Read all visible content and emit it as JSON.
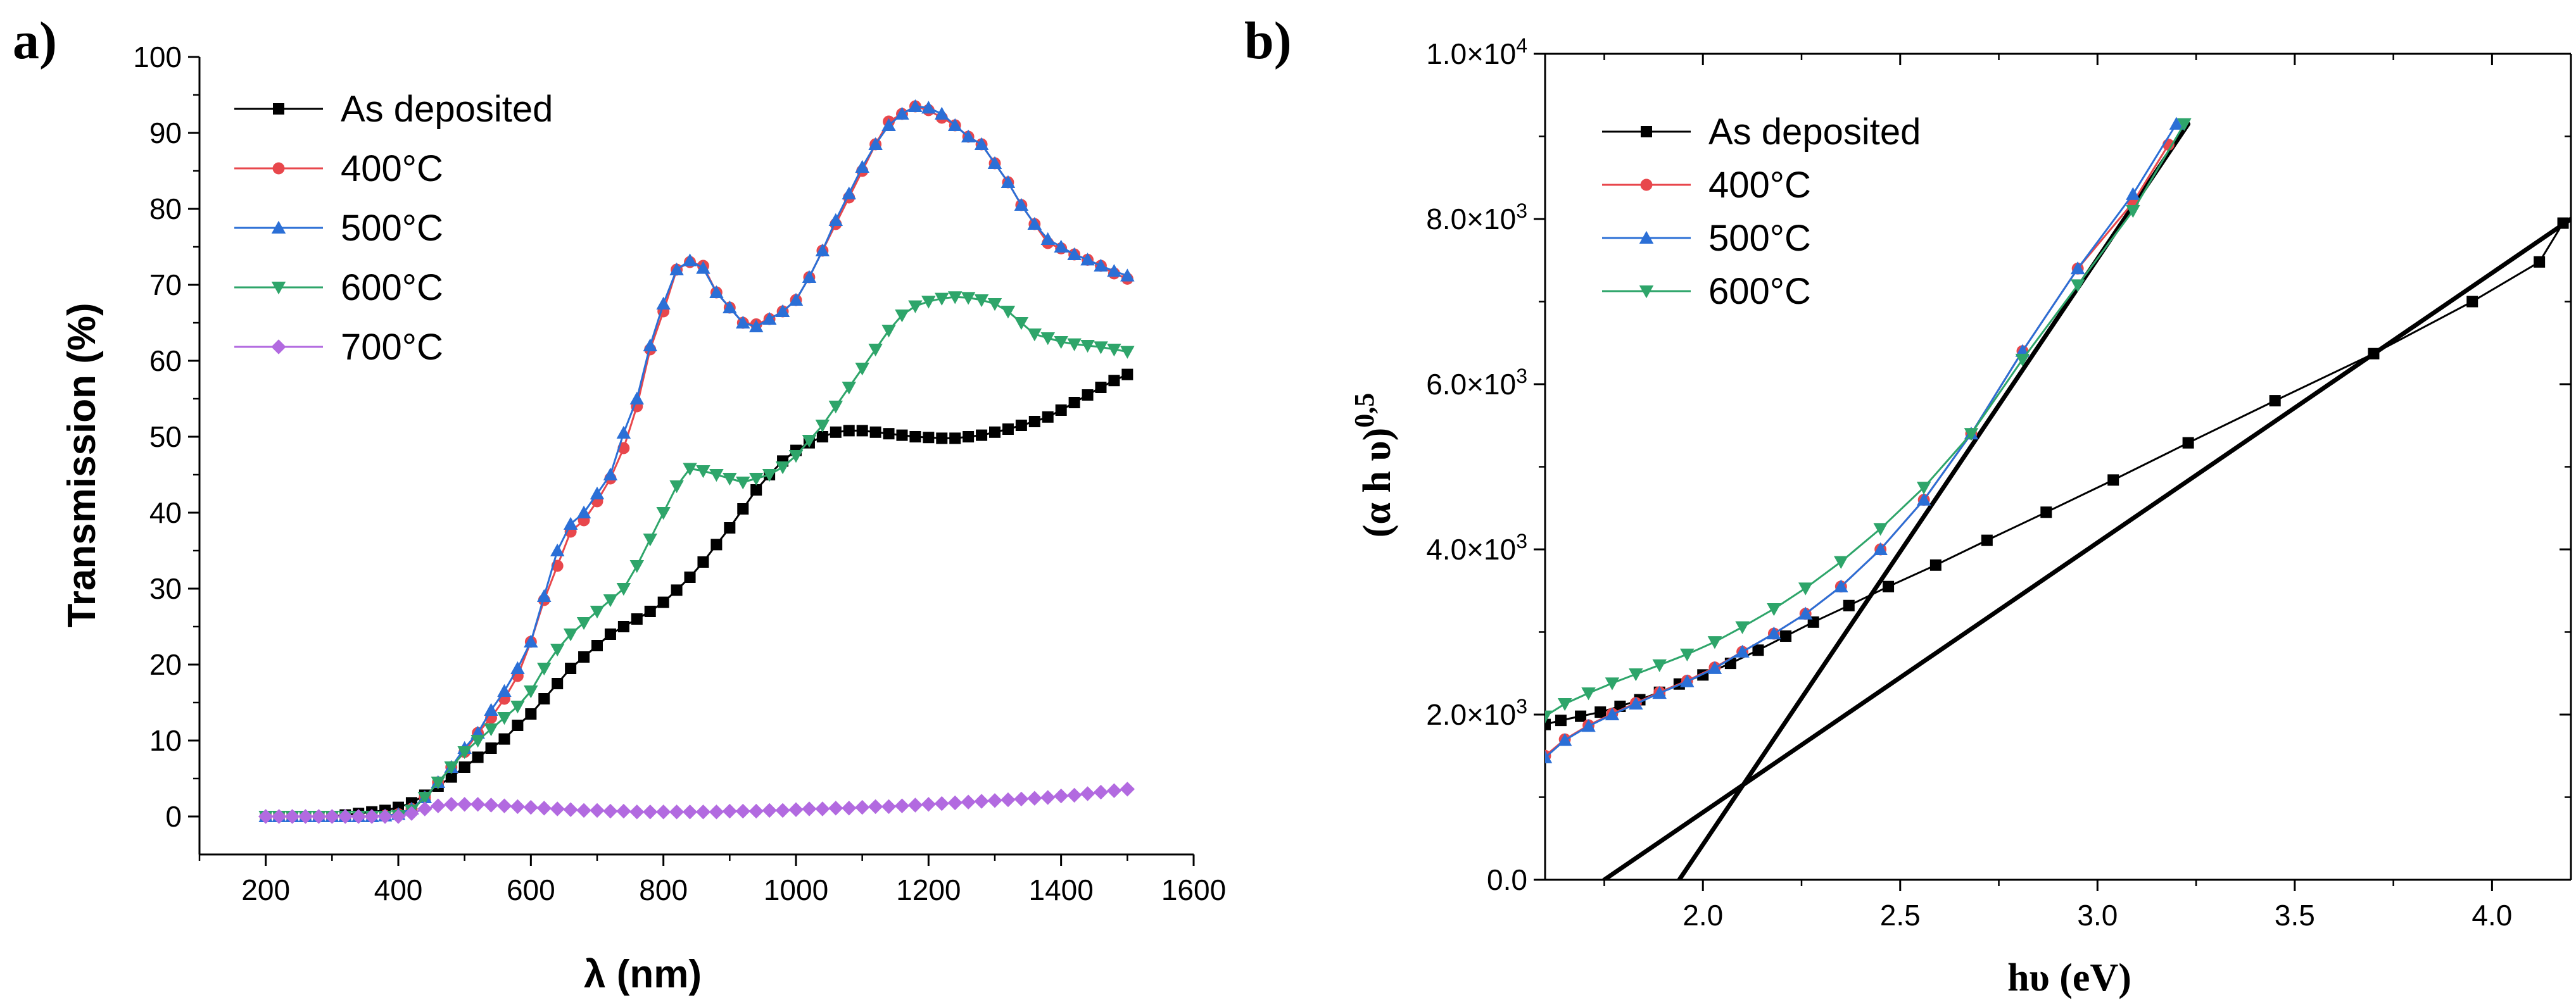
{
  "chart_data": [
    {
      "panel_label": "a)",
      "type": "line",
      "xlabel": "λ (nm)",
      "ylabel": "Transmission (%)",
      "xlim": [
        100,
        1600
      ],
      "ylim": [
        -5,
        100
      ],
      "xticks": [
        200,
        400,
        600,
        800,
        1000,
        1200,
        1400,
        1600
      ],
      "xtick_labels": [
        "200",
        "400",
        "600",
        "800",
        "1000",
        "1200",
        "1400",
        "1600"
      ],
      "yticks": [
        0,
        10,
        20,
        30,
        40,
        50,
        60,
        70,
        80,
        90,
        100
      ],
      "ytick_labels": [
        "0",
        "10",
        "20",
        "30",
        "40",
        "50",
        "60",
        "70",
        "80",
        "90",
        "100"
      ],
      "legend_position": "top-left",
      "series": [
        {
          "name": "As deposited",
          "color": "#000000",
          "marker": "square",
          "x": [
            200,
            220,
            240,
            260,
            280,
            300,
            320,
            340,
            360,
            380,
            400,
            420,
            440,
            460,
            480,
            500,
            520,
            540,
            560,
            580,
            600,
            620,
            640,
            660,
            680,
            700,
            720,
            740,
            760,
            780,
            800,
            820,
            840,
            860,
            880,
            900,
            920,
            940,
            960,
            980,
            1000,
            1020,
            1040,
            1060,
            1080,
            1100,
            1120,
            1140,
            1160,
            1180,
            1200,
            1220,
            1240,
            1260,
            1280,
            1300,
            1320,
            1340,
            1360,
            1380,
            1400,
            1420,
            1440,
            1460,
            1480,
            1500
          ],
          "y": [
            0,
            0,
            0,
            0,
            0,
            0,
            0.2,
            0.4,
            0.6,
            0.8,
            1.2,
            1.8,
            2.8,
            4,
            5.2,
            6.5,
            7.8,
            9,
            10.2,
            12,
            13.5,
            15.5,
            17.5,
            19.5,
            21,
            22.5,
            24,
            25,
            26,
            27,
            28.2,
            29.8,
            31.5,
            33.5,
            35.8,
            38,
            40.5,
            43,
            45,
            46.8,
            48.2,
            49.2,
            50,
            50.6,
            50.8,
            50.8,
            50.6,
            50.4,
            50.2,
            50,
            49.9,
            49.8,
            49.8,
            50,
            50.2,
            50.6,
            51,
            51.5,
            52,
            52.6,
            53.5,
            54.5,
            55.5,
            56.5,
            57.4,
            58.2
          ]
        },
        {
          "name": "400°C",
          "color": "#e8474c",
          "marker": "circle",
          "x": [
            200,
            220,
            240,
            260,
            280,
            300,
            320,
            340,
            360,
            380,
            400,
            420,
            440,
            460,
            480,
            500,
            520,
            540,
            560,
            580,
            600,
            620,
            640,
            660,
            680,
            700,
            720,
            740,
            760,
            780,
            800,
            820,
            840,
            860,
            880,
            900,
            920,
            940,
            960,
            980,
            1000,
            1020,
            1040,
            1060,
            1080,
            1100,
            1120,
            1140,
            1160,
            1180,
            1200,
            1220,
            1240,
            1260,
            1280,
            1300,
            1320,
            1340,
            1360,
            1380,
            1400,
            1420,
            1440,
            1460,
            1480,
            1500
          ],
          "y": [
            0,
            0,
            0,
            0,
            0,
            0,
            0,
            0,
            0,
            0.1,
            0.3,
            1,
            2.5,
            4.5,
            6.5,
            8.5,
            11,
            13,
            15.5,
            18.5,
            23,
            28.5,
            33,
            37.5,
            39,
            41.5,
            44.5,
            48.5,
            54,
            61.5,
            66.5,
            72,
            73,
            72.5,
            69,
            67,
            65,
            64.8,
            65.5,
            66.5,
            68,
            71,
            74.5,
            78,
            81.5,
            85,
            88.5,
            91.5,
            92.5,
            93.5,
            93,
            92,
            91,
            89.5,
            88.5,
            86,
            83.5,
            80.5,
            78,
            75.5,
            74.8,
            74,
            73.3,
            72.5,
            71.5,
            70.8
          ]
        },
        {
          "name": "500°C",
          "color": "#2b6fd6",
          "marker": "triangle-up",
          "x": [
            200,
            220,
            240,
            260,
            280,
            300,
            320,
            340,
            360,
            380,
            400,
            420,
            440,
            460,
            480,
            500,
            520,
            540,
            560,
            580,
            600,
            620,
            640,
            660,
            680,
            700,
            720,
            740,
            760,
            780,
            800,
            820,
            840,
            860,
            880,
            900,
            920,
            940,
            960,
            980,
            1000,
            1020,
            1040,
            1060,
            1080,
            1100,
            1120,
            1140,
            1160,
            1180,
            1200,
            1220,
            1240,
            1260,
            1280,
            1300,
            1320,
            1340,
            1360,
            1380,
            1400,
            1420,
            1440,
            1460,
            1480,
            1500
          ],
          "y": [
            0,
            0,
            0,
            0,
            0,
            0,
            0,
            0,
            0,
            0.1,
            0.3,
            1,
            2.5,
            4.5,
            6.5,
            9,
            11,
            14,
            16.5,
            19.5,
            23,
            29,
            35,
            38.5,
            40,
            42.5,
            45,
            50.5,
            55,
            62,
            67.5,
            72,
            73.2,
            72.2,
            69,
            67,
            65,
            64.5,
            65.5,
            66.5,
            68,
            71,
            74.5,
            78.5,
            82,
            85.5,
            88.5,
            91,
            92.5,
            93.5,
            93.3,
            92.5,
            91,
            89.5,
            88.5,
            86,
            83.5,
            80.5,
            78,
            76,
            75,
            74,
            73.3,
            72.5,
            71.8,
            71.2
          ]
        },
        {
          "name": "600°C",
          "color": "#2ea56a",
          "marker": "triangle-down",
          "x": [
            200,
            220,
            240,
            260,
            280,
            300,
            320,
            340,
            360,
            380,
            400,
            420,
            440,
            460,
            480,
            500,
            520,
            540,
            560,
            580,
            600,
            620,
            640,
            660,
            680,
            700,
            720,
            740,
            760,
            780,
            800,
            820,
            840,
            860,
            880,
            900,
            920,
            940,
            960,
            980,
            1000,
            1020,
            1040,
            1060,
            1080,
            1100,
            1120,
            1140,
            1160,
            1180,
            1200,
            1220,
            1240,
            1260,
            1280,
            1300,
            1320,
            1340,
            1360,
            1380,
            1400,
            1420,
            1440,
            1460,
            1480,
            1500
          ],
          "y": [
            0,
            0,
            0,
            0,
            0,
            0,
            0,
            0,
            0,
            0,
            0.1,
            0.8,
            2.5,
            4.5,
            6.5,
            8.5,
            10,
            11.5,
            13,
            14.5,
            16.5,
            19.5,
            22,
            24,
            25.5,
            27,
            28.5,
            30,
            33,
            36.5,
            40,
            43.5,
            45.8,
            45.5,
            45,
            44.5,
            44,
            44.5,
            45,
            46,
            47.5,
            49.5,
            51.5,
            54,
            56.5,
            59,
            61.5,
            64,
            66,
            67.2,
            67.8,
            68.2,
            68.4,
            68.3,
            68,
            67.5,
            66.5,
            65,
            63.5,
            63,
            62.5,
            62.2,
            62,
            61.8,
            61.5,
            61.2
          ]
        },
        {
          "name": "700°C",
          "color": "#b26ae0",
          "marker": "diamond",
          "x": [
            200,
            220,
            240,
            260,
            280,
            300,
            320,
            340,
            360,
            380,
            400,
            420,
            440,
            460,
            480,
            500,
            520,
            540,
            560,
            580,
            600,
            620,
            640,
            660,
            680,
            700,
            720,
            740,
            760,
            780,
            800,
            820,
            840,
            860,
            880,
            900,
            920,
            940,
            960,
            980,
            1000,
            1020,
            1040,
            1060,
            1080,
            1100,
            1120,
            1140,
            1160,
            1180,
            1200,
            1220,
            1240,
            1260,
            1280,
            1300,
            1320,
            1340,
            1360,
            1380,
            1400,
            1420,
            1440,
            1460,
            1480,
            1500
          ],
          "y": [
            0,
            0,
            0,
            0,
            0,
            0,
            0,
            0,
            0,
            0,
            0,
            0.4,
            1,
            1.4,
            1.6,
            1.6,
            1.6,
            1.5,
            1.4,
            1.3,
            1.2,
            1.1,
            1,
            0.9,
            0.8,
            0.8,
            0.7,
            0.7,
            0.6,
            0.6,
            0.6,
            0.6,
            0.6,
            0.6,
            0.6,
            0.7,
            0.7,
            0.7,
            0.8,
            0.8,
            0.9,
            1,
            1,
            1.1,
            1.1,
            1.2,
            1.3,
            1.3,
            1.4,
            1.5,
            1.6,
            1.7,
            1.8,
            1.9,
            2,
            2.1,
            2.2,
            2.3,
            2.4,
            2.5,
            2.7,
            2.8,
            3,
            3.2,
            3.4,
            3.6
          ]
        }
      ]
    },
    {
      "panel_label": "b)",
      "type": "line",
      "xlabel": "hυ (eV)",
      "ylabel_main": "(α h υ)",
      "ylabel_sup": "0,5",
      "xlim": [
        1.6,
        4.2
      ],
      "ylim": [
        0,
        10000
      ],
      "xticks": [
        2.0,
        2.5,
        3.0,
        3.5,
        4.0
      ],
      "xtick_labels": [
        "2.0",
        "2.5",
        "3.0",
        "3.5",
        "4.0"
      ],
      "yticks": [
        0,
        2000,
        4000,
        6000,
        8000,
        10000
      ],
      "ytick_labels": [
        {
          "value": 0,
          "base": "0.0",
          "exp": ""
        },
        {
          "value": 2000,
          "base": "2.0×10",
          "exp": "3"
        },
        {
          "value": 4000,
          "base": "4.0×10",
          "exp": "3"
        },
        {
          "value": 6000,
          "base": "6.0×10",
          "exp": "3"
        },
        {
          "value": 8000,
          "base": "8.0×10",
          "exp": "3"
        },
        {
          "value": 10000,
          "base": "1.0×10",
          "exp": "4"
        }
      ],
      "legend_position": "top-left",
      "series": [
        {
          "name": "As deposited",
          "color": "#000000",
          "marker": "square",
          "x": [
            1.6,
            1.64,
            1.69,
            1.74,
            1.79,
            1.84,
            1.89,
            1.94,
            2.0,
            2.07,
            2.14,
            2.21,
            2.28,
            2.37,
            2.47,
            2.59,
            2.72,
            2.87,
            3.04,
            3.23,
            3.45,
            3.7,
            3.95,
            4.12,
            4.18
          ],
          "y": [
            1880,
            1930,
            1980,
            2030,
            2100,
            2180,
            2270,
            2370,
            2480,
            2620,
            2780,
            2950,
            3120,
            3320,
            3550,
            3810,
            4110,
            4450,
            4840,
            5290,
            5800,
            6370,
            7000,
            7480,
            7950
          ]
        },
        {
          "name": "400°C",
          "color": "#e8474c",
          "marker": "circle",
          "x": [
            1.6,
            1.65,
            1.71,
            1.77,
            1.83,
            1.89,
            1.96,
            2.03,
            2.1,
            2.18,
            2.26,
            2.35,
            2.45,
            2.56,
            2.68,
            2.81,
            2.95,
            3.09,
            3.18
          ],
          "y": [
            1500,
            1700,
            1870,
            2010,
            2140,
            2270,
            2410,
            2570,
            2760,
            2980,
            3220,
            3550,
            4000,
            4600,
            5400,
            6400,
            7400,
            8200,
            8900
          ]
        },
        {
          "name": "500°C",
          "color": "#2b6fd6",
          "marker": "triangle-up",
          "x": [
            1.6,
            1.65,
            1.71,
            1.77,
            1.83,
            1.89,
            1.96,
            2.03,
            2.1,
            2.18,
            2.26,
            2.35,
            2.45,
            2.56,
            2.68,
            2.81,
            2.95,
            3.09,
            3.2
          ],
          "y": [
            1480,
            1690,
            1860,
            2000,
            2130,
            2260,
            2400,
            2560,
            2760,
            2980,
            3220,
            3550,
            4000,
            4600,
            5400,
            6400,
            7400,
            8300,
            9150
          ]
        },
        {
          "name": "600°C",
          "color": "#2ea56a",
          "marker": "triangle-down",
          "x": [
            1.6,
            1.65,
            1.71,
            1.77,
            1.83,
            1.89,
            1.96,
            2.03,
            2.1,
            2.18,
            2.26,
            2.35,
            2.45,
            2.56,
            2.68,
            2.81,
            2.95,
            3.09,
            3.22
          ],
          "y": [
            1980,
            2130,
            2260,
            2380,
            2490,
            2600,
            2730,
            2880,
            3060,
            3280,
            3530,
            3850,
            4250,
            4750,
            5400,
            6300,
            7200,
            8100,
            9150
          ]
        }
      ],
      "fit_lines": [
        {
          "name": "tauc-fit-annealed",
          "x": [
            1.94,
            3.23
          ],
          "y": [
            0,
            9150
          ]
        },
        {
          "name": "tauc-fit-as-deposited",
          "x": [
            1.75,
            4.2
          ],
          "y": [
            0,
            8000
          ]
        }
      ]
    }
  ]
}
